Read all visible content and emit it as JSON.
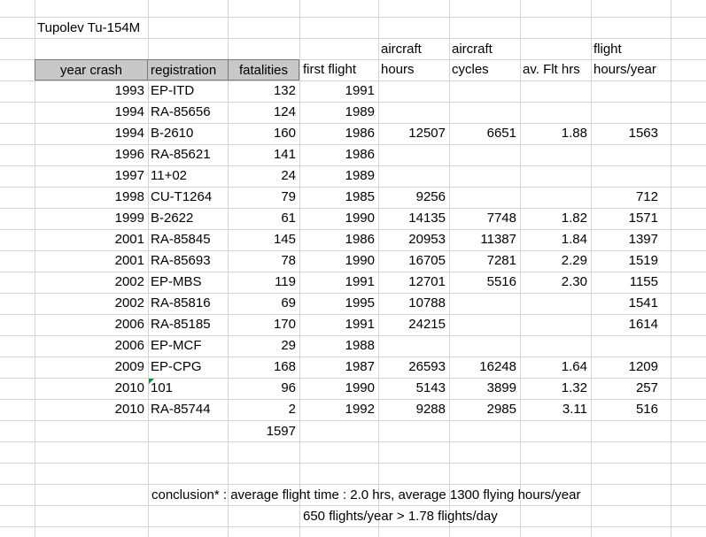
{
  "sheet": {
    "title": "Tupolev Tu-154M",
    "headers": {
      "year_crash": "year crash",
      "registration": "registration",
      "fatalities": "fatalities",
      "first_flight": "first flight",
      "aircraft_hours_top": "aircraft",
      "aircraft_hours_bottom": "hours",
      "aircraft_cycles_top": "aircraft",
      "aircraft_cycles_bottom": "cycles",
      "av_flt_hrs": "av. Flt hrs",
      "flight_hours_year_top": "flight",
      "flight_hours_year_bottom": "hours/year"
    },
    "rows": [
      {
        "year": "1993",
        "reg": "EP-ITD",
        "fat": "132",
        "first": "1991",
        "hours": "",
        "cycles": "",
        "avg": "",
        "hpy": ""
      },
      {
        "year": "1994",
        "reg": "RA-85656",
        "fat": "124",
        "first": "1989",
        "hours": "",
        "cycles": "",
        "avg": "",
        "hpy": ""
      },
      {
        "year": "1994",
        "reg": "B-2610",
        "fat": "160",
        "first": "1986",
        "hours": "12507",
        "cycles": "6651",
        "avg": "1.88",
        "hpy": "1563"
      },
      {
        "year": "1996",
        "reg": "RA-85621",
        "fat": "141",
        "first": "1986",
        "hours": "",
        "cycles": "",
        "avg": "",
        "hpy": ""
      },
      {
        "year": "1997",
        "reg": "11+02",
        "fat": "24",
        "first": "1989",
        "hours": "",
        "cycles": "",
        "avg": "",
        "hpy": ""
      },
      {
        "year": "1998",
        "reg": "CU-T1264",
        "fat": "79",
        "first": "1985",
        "hours": "9256",
        "cycles": "",
        "avg": "",
        "hpy": "712"
      },
      {
        "year": "1999",
        "reg": "B-2622",
        "fat": "61",
        "first": "1990",
        "hours": "14135",
        "cycles": "7748",
        "avg": "1.82",
        "hpy": "1571"
      },
      {
        "year": "2001",
        "reg": "RA-85845",
        "fat": "145",
        "first": "1986",
        "hours": "20953",
        "cycles": "11387",
        "avg": "1.84",
        "hpy": "1397"
      },
      {
        "year": "2001",
        "reg": "RA-85693",
        "fat": "78",
        "first": "1990",
        "hours": "16705",
        "cycles": "7281",
        "avg": "2.29",
        "hpy": "1519"
      },
      {
        "year": "2002",
        "reg": "EP-MBS",
        "fat": "119",
        "first": "1991",
        "hours": "12701",
        "cycles": "5516",
        "avg": "2.30",
        "hpy": "1155"
      },
      {
        "year": "2002",
        "reg": "RA-85816",
        "fat": "69",
        "first": "1995",
        "hours": "10788",
        "cycles": "",
        "avg": "",
        "hpy": "1541"
      },
      {
        "year": "2006",
        "reg": "RA-85185",
        "fat": "170",
        "first": "1991",
        "hours": "24215",
        "cycles": "",
        "avg": "",
        "hpy": "1614"
      },
      {
        "year": "2006",
        "reg": "EP-MCF",
        "fat": "29",
        "first": "1988",
        "hours": "",
        "cycles": "",
        "avg": "",
        "hpy": ""
      },
      {
        "year": "2009",
        "reg": "EP-CPG",
        "fat": "168",
        "first": "1987",
        "hours": "26593",
        "cycles": "16248",
        "avg": "1.64",
        "hpy": "1209"
      },
      {
        "year": "2010",
        "reg": "101",
        "fat": "96",
        "first": "1990",
        "hours": "5143",
        "cycles": "3899",
        "avg": "1.32",
        "hpy": "257",
        "comment": true
      },
      {
        "year": "2010",
        "reg": "RA-85744",
        "fat": "2",
        "first": "1992",
        "hours": "9288",
        "cycles": "2985",
        "avg": "3.11",
        "hpy": "516"
      }
    ],
    "total_fatalities": "1597",
    "conclusion_line1": "conclusion* : average flight time : 2.0 hrs, average 1300 flying hours/year",
    "conclusion_line2": "650 flights/year > 1.78 flights/day",
    "colors": {
      "header_fill": "#c8c8c8",
      "grid": "#d4d4d4",
      "comment_marker": "#1e8a3a"
    }
  }
}
